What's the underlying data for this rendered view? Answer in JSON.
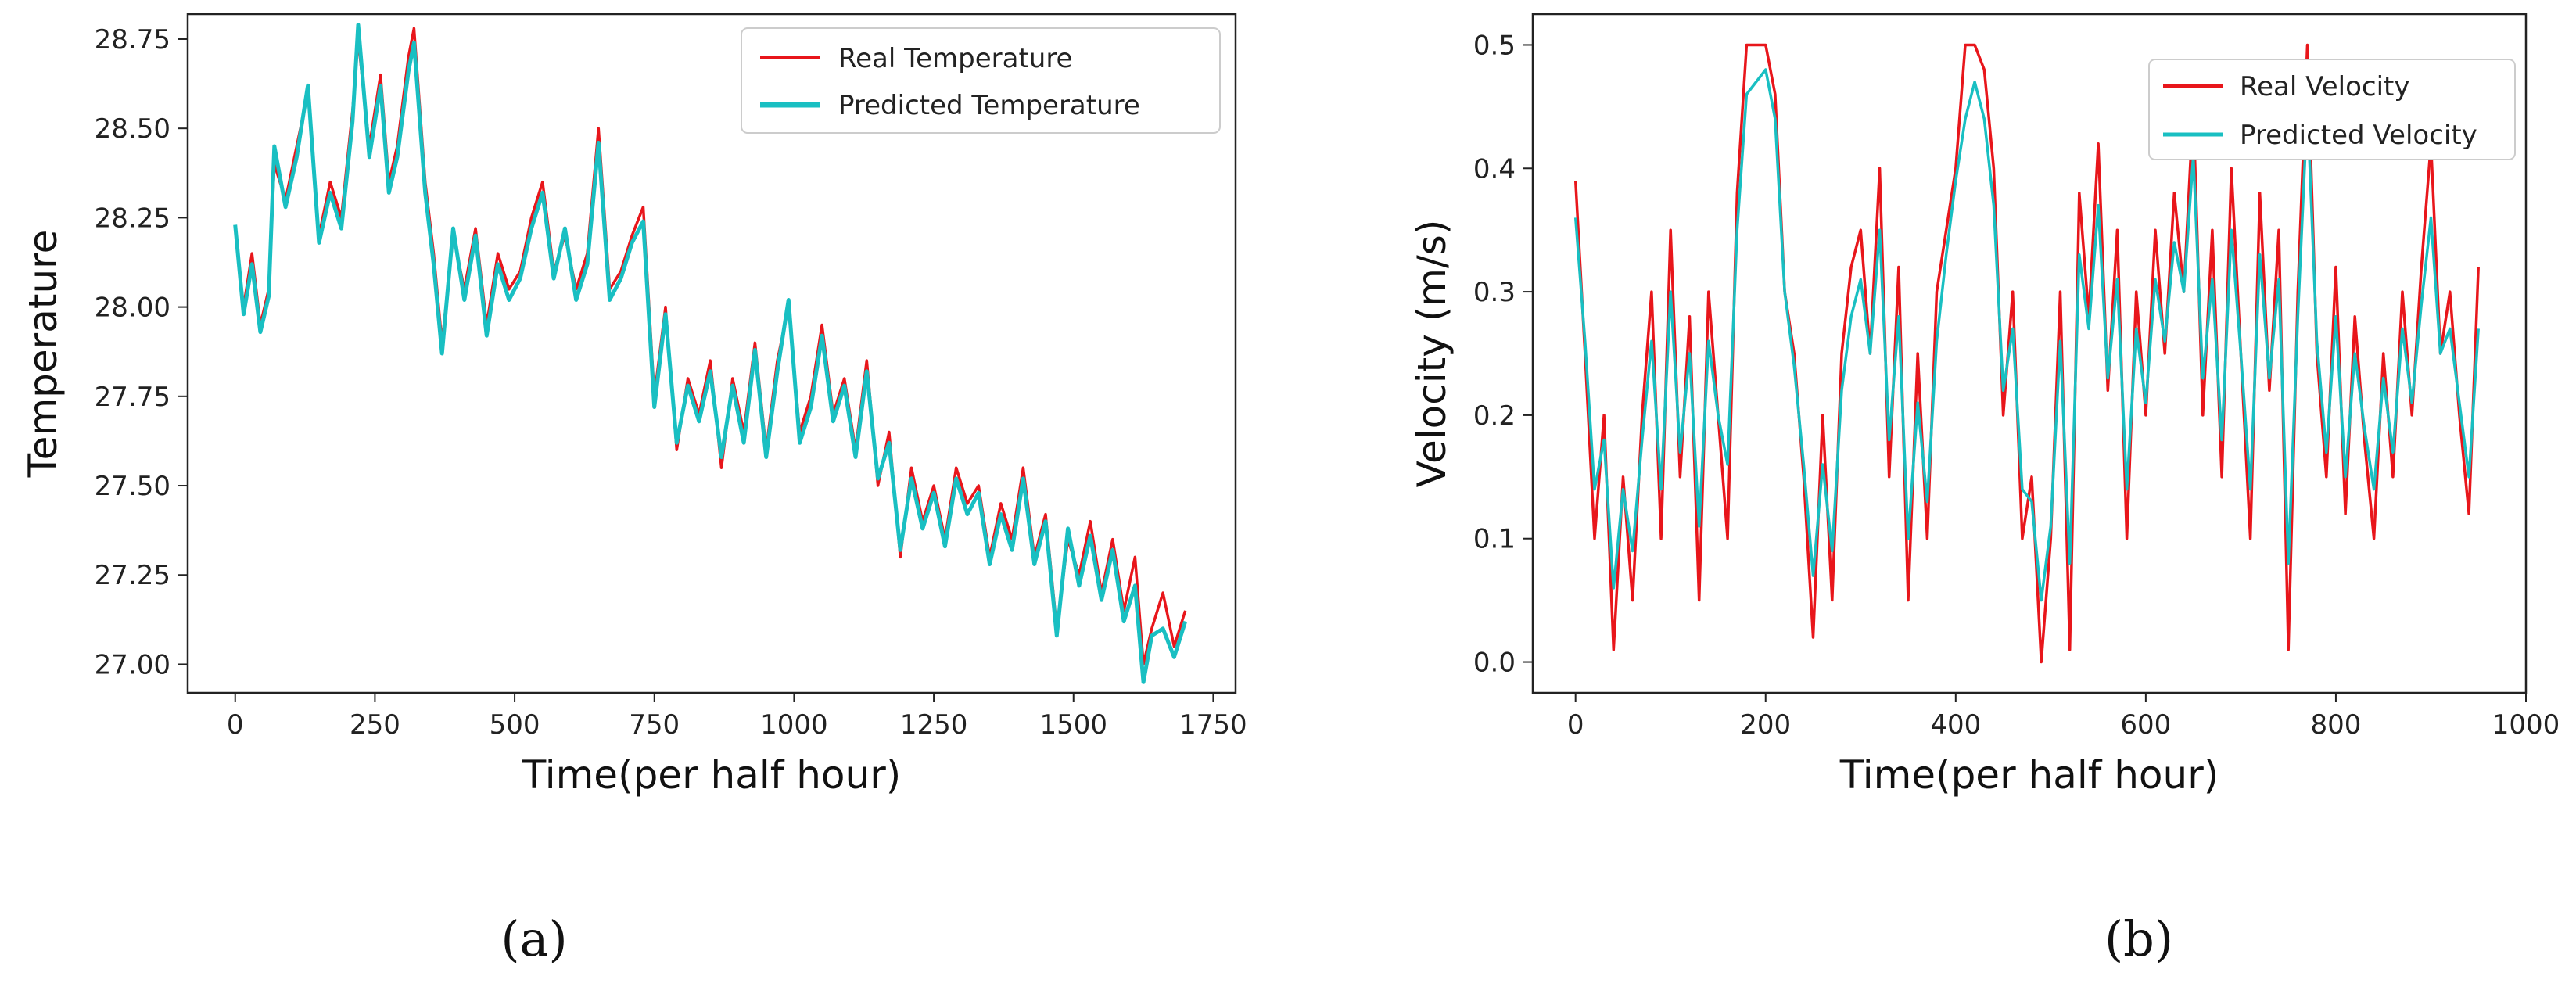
{
  "colors": {
    "real": "#e8161b",
    "predicted": "#19bfc2"
  },
  "chart_data": [
    {
      "type": "line",
      "panel_label": "(a)",
      "xlabel": "Time(per half hour)",
      "ylabel": "Temperature",
      "xlim": [
        -85,
        1790
      ],
      "ylim": [
        26.92,
        28.82
      ],
      "xticks": [
        0,
        250,
        500,
        750,
        1000,
        1250,
        1500,
        1750
      ],
      "yticks": [
        27.0,
        27.25,
        27.5,
        27.75,
        28.0,
        28.25,
        28.5,
        28.75
      ],
      "x_tick_labels": [
        "0",
        "250",
        "500",
        "750",
        "1000",
        "1250",
        "1500",
        "1750"
      ],
      "y_tick_labels": [
        "27.00",
        "27.25",
        "27.50",
        "27.75",
        "28.00",
        "28.25",
        "28.50",
        "28.75"
      ],
      "legend": {
        "position": "top-right",
        "entries": [
          "Real Temperature",
          "Predicted Temperature"
        ]
      },
      "series": [
        {
          "name": "Real Temperature",
          "color": "#e8161b",
          "x": [
            0,
            15,
            30,
            45,
            60,
            70,
            90,
            110,
            130,
            150,
            170,
            190,
            210,
            220,
            240,
            260,
            275,
            290,
            310,
            320,
            340,
            355,
            370,
            390,
            410,
            430,
            450,
            470,
            490,
            510,
            530,
            550,
            570,
            590,
            610,
            630,
            650,
            670,
            690,
            710,
            730,
            750,
            770,
            790,
            810,
            830,
            850,
            870,
            890,
            910,
            930,
            950,
            970,
            990,
            1010,
            1030,
            1050,
            1070,
            1090,
            1110,
            1130,
            1150,
            1170,
            1190,
            1210,
            1230,
            1250,
            1270,
            1290,
            1310,
            1330,
            1350,
            1370,
            1390,
            1410,
            1430,
            1450,
            1470,
            1490,
            1510,
            1530,
            1550,
            1570,
            1590,
            1610,
            1625,
            1640,
            1660,
            1680,
            1700
          ],
          "values": [
            28.22,
            28.0,
            28.15,
            27.95,
            28.05,
            28.4,
            28.3,
            28.45,
            28.6,
            28.2,
            28.35,
            28.25,
            28.55,
            28.75,
            28.45,
            28.65,
            28.35,
            28.45,
            28.7,
            28.78,
            28.35,
            28.15,
            27.9,
            28.2,
            28.05,
            28.22,
            27.95,
            28.15,
            28.05,
            28.1,
            28.25,
            28.35,
            28.1,
            28.2,
            28.05,
            28.15,
            28.5,
            28.05,
            28.1,
            28.2,
            28.28,
            27.75,
            28.0,
            27.6,
            27.8,
            27.7,
            27.85,
            27.55,
            27.8,
            27.65,
            27.9,
            27.6,
            27.85,
            28.0,
            27.65,
            27.75,
            27.95,
            27.7,
            27.8,
            27.6,
            27.85,
            27.5,
            27.65,
            27.3,
            27.55,
            27.4,
            27.5,
            27.35,
            27.55,
            27.45,
            27.5,
            27.3,
            27.45,
            27.35,
            27.55,
            27.3,
            27.42,
            27.1,
            27.35,
            27.25,
            27.4,
            27.2,
            27.35,
            27.15,
            27.3,
            27.0,
            27.1,
            27.2,
            27.05,
            27.15
          ]
        },
        {
          "name": "Predicted Temperature",
          "color": "#19bfc2",
          "x": [
            0,
            15,
            30,
            45,
            60,
            70,
            90,
            110,
            130,
            150,
            170,
            190,
            210,
            220,
            240,
            260,
            275,
            290,
            310,
            320,
            340,
            355,
            370,
            390,
            410,
            430,
            450,
            470,
            490,
            510,
            530,
            550,
            570,
            590,
            610,
            630,
            650,
            670,
            690,
            710,
            730,
            750,
            770,
            790,
            810,
            830,
            850,
            870,
            890,
            910,
            930,
            950,
            970,
            990,
            1010,
            1030,
            1050,
            1070,
            1090,
            1110,
            1130,
            1150,
            1170,
            1190,
            1210,
            1230,
            1250,
            1270,
            1290,
            1310,
            1330,
            1350,
            1370,
            1390,
            1410,
            1430,
            1450,
            1470,
            1490,
            1510,
            1530,
            1550,
            1570,
            1590,
            1610,
            1625,
            1640,
            1660,
            1680,
            1700
          ],
          "values": [
            28.23,
            27.98,
            28.12,
            27.93,
            28.03,
            28.45,
            28.28,
            28.42,
            28.62,
            28.18,
            28.32,
            28.22,
            28.52,
            28.79,
            28.42,
            28.62,
            28.32,
            28.42,
            28.66,
            28.74,
            28.32,
            28.12,
            27.87,
            28.22,
            28.02,
            28.2,
            27.92,
            28.12,
            28.02,
            28.08,
            28.22,
            28.32,
            28.08,
            28.22,
            28.02,
            28.12,
            28.46,
            28.02,
            28.08,
            28.18,
            28.24,
            27.72,
            27.98,
            27.62,
            27.78,
            27.68,
            27.82,
            27.58,
            27.78,
            27.62,
            27.88,
            27.58,
            27.82,
            28.02,
            27.62,
            27.72,
            27.92,
            27.68,
            27.78,
            27.58,
            27.82,
            27.52,
            27.62,
            27.32,
            27.52,
            27.38,
            27.48,
            27.33,
            27.52,
            27.42,
            27.48,
            27.28,
            27.42,
            27.32,
            27.52,
            27.28,
            27.4,
            27.08,
            27.38,
            27.22,
            27.36,
            27.18,
            27.32,
            27.12,
            27.22,
            26.95,
            27.08,
            27.1,
            27.02,
            27.12
          ]
        }
      ]
    },
    {
      "type": "line",
      "panel_label": "(b)",
      "xlabel": "Time(per half hour)",
      "ylabel": "Velocity (m/s)",
      "xlim": [
        -45,
        1000
      ],
      "ylim": [
        -0.025,
        0.525
      ],
      "xticks": [
        0,
        200,
        400,
        600,
        800,
        1000
      ],
      "yticks": [
        0.0,
        0.1,
        0.2,
        0.3,
        0.4,
        0.5
      ],
      "x_tick_labels": [
        "0",
        "200",
        "400",
        "600",
        "800",
        "1000"
      ],
      "y_tick_labels": [
        "0.0",
        "0.1",
        "0.2",
        "0.3",
        "0.4",
        "0.5"
      ],
      "legend": {
        "position": "top-right",
        "entries": [
          "Real Velocity",
          "Predicted Velocity"
        ]
      },
      "series": [
        {
          "name": "Real Velocity",
          "color": "#e8161b",
          "x": [
            0,
            10,
            20,
            30,
            40,
            50,
            60,
            70,
            80,
            90,
            100,
            110,
            120,
            130,
            140,
            150,
            160,
            170,
            180,
            200,
            210,
            220,
            230,
            240,
            250,
            260,
            270,
            280,
            290,
            300,
            310,
            320,
            330,
            340,
            350,
            360,
            370,
            380,
            390,
            400,
            410,
            420,
            430,
            440,
            450,
            460,
            470,
            480,
            490,
            500,
            510,
            520,
            530,
            540,
            550,
            560,
            570,
            580,
            590,
            600,
            610,
            620,
            630,
            640,
            650,
            660,
            670,
            680,
            690,
            700,
            710,
            720,
            730,
            740,
            750,
            760,
            770,
            780,
            790,
            800,
            810,
            820,
            830,
            840,
            850,
            860,
            870,
            880,
            890,
            900,
            910,
            920,
            930,
            940,
            950
          ],
          "values": [
            0.39,
            0.25,
            0.1,
            0.2,
            0.01,
            0.15,
            0.05,
            0.2,
            0.3,
            0.1,
            0.35,
            0.15,
            0.28,
            0.05,
            0.3,
            0.2,
            0.1,
            0.38,
            0.5,
            0.5,
            0.46,
            0.3,
            0.25,
            0.15,
            0.02,
            0.2,
            0.05,
            0.25,
            0.32,
            0.35,
            0.25,
            0.4,
            0.15,
            0.32,
            0.05,
            0.25,
            0.1,
            0.3,
            0.35,
            0.4,
            0.5,
            0.5,
            0.48,
            0.4,
            0.2,
            0.3,
            0.1,
            0.15,
            0.0,
            0.1,
            0.3,
            0.01,
            0.38,
            0.28,
            0.42,
            0.22,
            0.35,
            0.1,
            0.3,
            0.2,
            0.35,
            0.25,
            0.38,
            0.3,
            0.45,
            0.2,
            0.35,
            0.15,
            0.4,
            0.25,
            0.1,
            0.38,
            0.22,
            0.35,
            0.01,
            0.3,
            0.5,
            0.25,
            0.15,
            0.32,
            0.12,
            0.28,
            0.18,
            0.1,
            0.25,
            0.15,
            0.3,
            0.2,
            0.32,
            0.42,
            0.25,
            0.3,
            0.2,
            0.12,
            0.32
          ]
        },
        {
          "name": "Predicted Velocity",
          "color": "#19bfc2",
          "x": [
            0,
            10,
            20,
            30,
            40,
            50,
            60,
            70,
            80,
            90,
            100,
            110,
            120,
            130,
            140,
            150,
            160,
            170,
            180,
            200,
            210,
            220,
            230,
            240,
            250,
            260,
            270,
            280,
            290,
            300,
            310,
            320,
            330,
            340,
            350,
            360,
            370,
            380,
            390,
            400,
            410,
            420,
            430,
            440,
            450,
            460,
            470,
            480,
            490,
            500,
            510,
            520,
            530,
            540,
            550,
            560,
            570,
            580,
            590,
            600,
            610,
            620,
            630,
            640,
            650,
            660,
            670,
            680,
            690,
            700,
            710,
            720,
            730,
            740,
            750,
            760,
            770,
            780,
            790,
            800,
            810,
            820,
            830,
            840,
            850,
            860,
            870,
            880,
            890,
            900,
            910,
            920,
            930,
            940,
            950
          ],
          "values": [
            0.36,
            0.26,
            0.14,
            0.18,
            0.06,
            0.14,
            0.09,
            0.18,
            0.26,
            0.14,
            0.3,
            0.17,
            0.25,
            0.11,
            0.26,
            0.2,
            0.16,
            0.35,
            0.46,
            0.48,
            0.44,
            0.3,
            0.24,
            0.16,
            0.07,
            0.16,
            0.09,
            0.22,
            0.28,
            0.31,
            0.25,
            0.35,
            0.18,
            0.28,
            0.1,
            0.21,
            0.13,
            0.26,
            0.33,
            0.39,
            0.44,
            0.47,
            0.44,
            0.37,
            0.22,
            0.27,
            0.14,
            0.13,
            0.05,
            0.11,
            0.26,
            0.08,
            0.33,
            0.27,
            0.37,
            0.23,
            0.31,
            0.14,
            0.27,
            0.21,
            0.31,
            0.26,
            0.34,
            0.3,
            0.41,
            0.23,
            0.31,
            0.18,
            0.35,
            0.25,
            0.14,
            0.33,
            0.23,
            0.31,
            0.08,
            0.28,
            0.45,
            0.26,
            0.17,
            0.28,
            0.15,
            0.25,
            0.19,
            0.14,
            0.23,
            0.17,
            0.27,
            0.21,
            0.29,
            0.36,
            0.25,
            0.27,
            0.21,
            0.15,
            0.27
          ]
        }
      ]
    }
  ]
}
